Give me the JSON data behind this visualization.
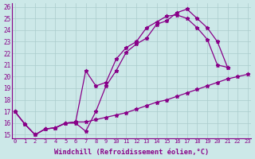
{
  "xlabel": "Windchill (Refroidissement éolien,°C)",
  "bg_color": "#cce8e8",
  "line_color": "#880088",
  "grid_color": "#aacccc",
  "xlim": [
    -0.3,
    23.3
  ],
  "ylim": [
    14.7,
    26.3
  ],
  "xticks": [
    0,
    1,
    2,
    3,
    4,
    5,
    6,
    7,
    8,
    9,
    10,
    11,
    12,
    13,
    14,
    15,
    16,
    17,
    18,
    19,
    20,
    21,
    22,
    23
  ],
  "yticks": [
    15,
    16,
    17,
    18,
    19,
    20,
    21,
    22,
    23,
    24,
    25,
    26
  ],
  "s1x": [
    0,
    1,
    2,
    3,
    4,
    5,
    6,
    7,
    8,
    9,
    10,
    11,
    12,
    13,
    14,
    15,
    16,
    17,
    18,
    19,
    20,
    21
  ],
  "s1y": [
    17.0,
    15.9,
    15.0,
    15.5,
    15.6,
    16.0,
    16.0,
    15.3,
    17.0,
    19.2,
    20.5,
    22.1,
    22.8,
    23.3,
    24.5,
    24.8,
    25.5,
    25.8,
    25.0,
    24.2,
    23.0,
    20.8
  ],
  "s2x": [
    0,
    1,
    2,
    3,
    4,
    5,
    6,
    7,
    8,
    9,
    10,
    11,
    12,
    13,
    14,
    15,
    16,
    17,
    18,
    19,
    20,
    21
  ],
  "s2y": [
    17.0,
    15.9,
    15.0,
    15.5,
    15.6,
    16.0,
    16.1,
    20.5,
    19.2,
    19.5,
    21.5,
    22.5,
    23.0,
    24.2,
    24.7,
    25.2,
    25.3,
    25.0,
    24.2,
    23.2,
    21.0,
    20.8
  ],
  "s3x": [
    0,
    1,
    2,
    3,
    4,
    5,
    6,
    7,
    8,
    9,
    10,
    11,
    12,
    13,
    14,
    15,
    16,
    17,
    18,
    19,
    20,
    21,
    22,
    23
  ],
  "s3y": [
    17.0,
    15.9,
    15.0,
    15.5,
    15.6,
    16.0,
    16.1,
    16.1,
    16.3,
    16.5,
    16.7,
    16.9,
    17.2,
    17.5,
    17.8,
    18.0,
    18.3,
    18.6,
    18.9,
    19.2,
    19.5,
    19.8,
    20.0,
    20.2
  ]
}
